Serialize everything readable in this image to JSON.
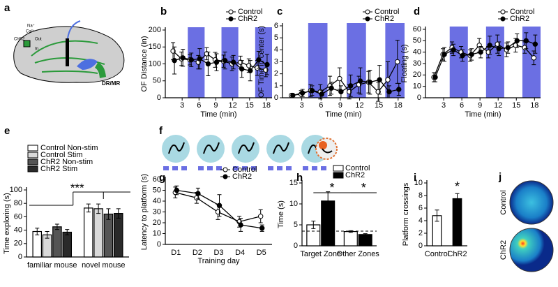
{
  "panel_a": {
    "label": "a",
    "ions": [
      "Na⁺",
      "Ca²⁺"
    ],
    "channel": "ChR2",
    "out": "Out",
    "in": "In",
    "region": "DR/MR"
  },
  "panel_f": {
    "label": "f"
  },
  "panel_j": {
    "label": "j",
    "rows": [
      "Control",
      "ChR2"
    ]
  },
  "chart_data": [
    {
      "panel": "b",
      "type": "line",
      "x_label": "Time (min)",
      "y_label": "OF Distance (in)",
      "x": [
        1.5,
        3,
        4.5,
        6,
        7.5,
        9,
        10.5,
        12,
        13.5,
        15,
        16.5,
        18
      ],
      "xlim": [
        0,
        19
      ],
      "xticks": [
        3,
        6,
        9,
        12,
        15,
        18
      ],
      "ylim": [
        0,
        200
      ],
      "yticks": [
        0,
        50,
        100,
        150,
        200
      ],
      "stim_periods": [
        [
          4,
          7
        ],
        [
          10,
          13
        ],
        [
          16,
          19
        ]
      ],
      "stim_color": "#6b6fe3",
      "series": [
        {
          "name": "Control",
          "marker": "open",
          "color": "#000000",
          "values": [
            138,
            115,
            112,
            105,
            130,
            112,
            108,
            100,
            105,
            95,
            88,
            82
          ],
          "errors": [
            25,
            20,
            15,
            20,
            18,
            22,
            18,
            20,
            18,
            20,
            22,
            20
          ]
        },
        {
          "name": "ChR2",
          "marker": "filled",
          "color": "#000000",
          "values": [
            110,
            118,
            112,
            115,
            100,
            105,
            110,
            105,
            85,
            80,
            112,
            98
          ],
          "errors": [
            40,
            25,
            20,
            30,
            35,
            25,
            25,
            20,
            25,
            30,
            25,
            30
          ]
        }
      ]
    },
    {
      "panel": "c",
      "type": "line",
      "x_label": "Time (min)",
      "y_label": "OF Time in center (s)",
      "x": [
        1.5,
        3,
        4.5,
        6,
        7.5,
        9,
        10.5,
        12,
        13.5,
        15,
        16.5,
        18
      ],
      "xlim": [
        0,
        19
      ],
      "xticks": [
        3,
        6,
        9,
        12,
        15,
        18
      ],
      "ylim": [
        0,
        6
      ],
      "yticks": [
        0,
        1,
        2,
        3,
        4,
        5,
        6
      ],
      "stim_periods": [
        [
          4,
          7
        ],
        [
          10,
          13
        ],
        [
          16,
          19
        ]
      ],
      "stim_color": "#6b6fe3",
      "series": [
        {
          "name": "Control",
          "marker": "open",
          "color": "#000000",
          "values": [
            0.2,
            0.3,
            0.6,
            0.5,
            1.0,
            1.6,
            0.5,
            1.1,
            1.3,
            0.5,
            1.5,
            3.0
          ],
          "errors": [
            0.1,
            0.3,
            0.5,
            0.6,
            0.8,
            0.9,
            0.6,
            0.7,
            0.9,
            0.8,
            1.5,
            1.8
          ]
        },
        {
          "name": "ChR2",
          "marker": "filled",
          "color": "#000000",
          "values": [
            0.2,
            0.4,
            0.6,
            0.3,
            0.8,
            0.5,
            1.0,
            1.4,
            1.3,
            1.5,
            0.5,
            0.7
          ],
          "errors": [
            0.1,
            0.3,
            0.4,
            0.3,
            0.5,
            0.5,
            0.9,
            1.1,
            1.0,
            1.2,
            0.5,
            0.5
          ]
        }
      ]
    },
    {
      "panel": "d",
      "type": "line",
      "x_label": "Time (min)",
      "y_label": "Floating (s)",
      "x": [
        1.5,
        3,
        4.5,
        6,
        7.5,
        9,
        10.5,
        12,
        13.5,
        15,
        16.5,
        18
      ],
      "xlim": [
        0,
        19
      ],
      "xticks": [
        3,
        6,
        9,
        12,
        15,
        18
      ],
      "ylim": [
        0,
        60
      ],
      "yticks": [
        0,
        10,
        20,
        30,
        40,
        50,
        60
      ],
      "stim_periods": [
        [
          4,
          7
        ],
        [
          10,
          13
        ],
        [
          16,
          19
        ]
      ],
      "stim_color": "#6b6fe3",
      "series": [
        {
          "name": "Control",
          "marker": "open",
          "color": "#000000",
          "values": [
            18,
            38,
            44,
            40,
            37,
            46,
            40,
            47,
            42,
            46,
            44,
            35
          ],
          "errors": [
            4,
            5,
            5,
            5,
            5,
            6,
            5,
            8,
            6,
            6,
            5,
            6
          ]
        },
        {
          "name": "ChR2",
          "marker": "filled",
          "color": "#000000",
          "values": [
            18,
            38,
            42,
            37,
            38,
            40,
            46,
            43,
            44,
            50,
            50,
            47
          ],
          "errors": [
            4,
            6,
            5,
            5,
            5,
            5,
            8,
            6,
            5,
            6,
            7,
            8
          ]
        }
      ]
    },
    {
      "panel": "e",
      "type": "bar",
      "y_label": "Time exploring (s)",
      "categories": [
        "familiar mouse",
        "novel mouse"
      ],
      "ylim": [
        0,
        100
      ],
      "yticks": [
        0,
        20,
        40,
        60,
        80,
        100
      ],
      "annotations": [
        "***"
      ],
      "series": [
        {
          "name": "Control Non-stim",
          "color": "#ffffff",
          "values": [
            38,
            73
          ],
          "errors": [
            5,
            6
          ]
        },
        {
          "name": "Control Stim",
          "color": "#d9d9d9",
          "values": [
            33,
            72
          ],
          "errors": [
            5,
            7
          ]
        },
        {
          "name": "ChR2 Non-stim",
          "color": "#555555",
          "values": [
            45,
            64
          ],
          "errors": [
            4,
            8
          ]
        },
        {
          "name": "ChR2 Stim",
          "color": "#2a2a2a",
          "values": [
            37,
            65
          ],
          "errors": [
            4,
            7
          ]
        }
      ]
    },
    {
      "panel": "g",
      "type": "line",
      "x_label": "Training day",
      "y_label": "Latency to platform (s)",
      "categories": [
        "D1",
        "D2",
        "D3",
        "D4",
        "D5"
      ],
      "ylim": [
        0,
        60
      ],
      "yticks": [
        0,
        10,
        20,
        30,
        40,
        50,
        60
      ],
      "series": [
        {
          "name": "Control",
          "marker": "open",
          "color": "#000000",
          "values": [
            48,
            43,
            30,
            21,
            26
          ],
          "errors": [
            5,
            5,
            7,
            5,
            6
          ]
        },
        {
          "name": "ChR2",
          "marker": "filled",
          "color": "#000000",
          "values": [
            50,
            47,
            36,
            18,
            15
          ],
          "errors": [
            4,
            5,
            10,
            6,
            3
          ]
        }
      ]
    },
    {
      "panel": "h",
      "type": "bar",
      "y_label": "Time (s)",
      "categories": [
        "Target Zone",
        "Other Zones"
      ],
      "ylim": [
        0,
        15
      ],
      "yticks": [
        0,
        5,
        10,
        15
      ],
      "reference_line": 3.5,
      "annotations": [
        "*",
        "*"
      ],
      "series": [
        {
          "name": "Control",
          "color": "#ffffff",
          "values": [
            5.0,
            3.4
          ],
          "errors": [
            0.9,
            0.2
          ]
        },
        {
          "name": "ChR2",
          "color": "#000000",
          "values": [
            10.7,
            2.7
          ],
          "errors": [
            2.2,
            0.2
          ]
        }
      ]
    },
    {
      "panel": "i",
      "type": "bar",
      "y_label": "Platform crossings",
      "categories": [
        "Control",
        "ChR2"
      ],
      "ylim": [
        0,
        10
      ],
      "yticks": [
        0,
        2,
        4,
        6,
        8,
        10
      ],
      "annotations": [
        "*"
      ],
      "values": [
        4.8,
        7.5
      ],
      "errors": [
        0.9,
        0.8
      ],
      "colors": [
        "#ffffff",
        "#000000"
      ]
    }
  ]
}
